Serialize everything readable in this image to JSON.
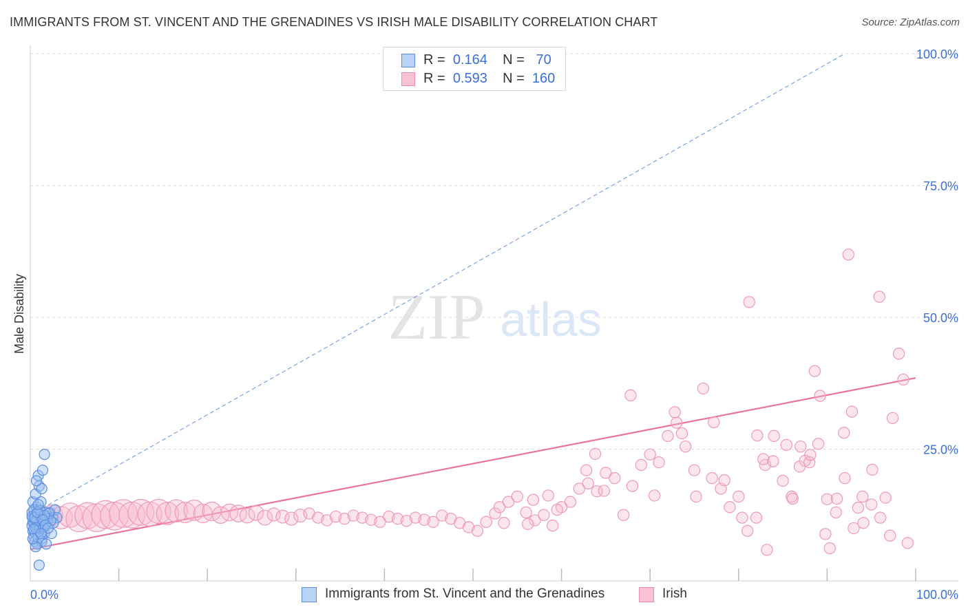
{
  "title": "IMMIGRANTS FROM ST. VINCENT AND THE GRENADINES VS IRISH MALE DISABILITY CORRELATION CHART",
  "source": "Source: ZipAtlas.com",
  "watermark": {
    "zip": "ZIP",
    "atlas": "atlas"
  },
  "colors": {
    "blue": "#4a7fd8",
    "blue_fill": "#aac8f2",
    "pink": "#e8739b",
    "pink_fill": "#f6b8cc",
    "axis_text": "#3a6fd6",
    "grid": "#dddddd"
  },
  "legend": {
    "r_label": "R =",
    "n_label": "N =",
    "rows": [
      {
        "r": "0.164",
        "n": "70"
      },
      {
        "r": "0.593",
        "n": "160"
      }
    ]
  },
  "chart_data": {
    "type": "scatter",
    "title": "IMMIGRANTS FROM ST. VINCENT AND THE GRENADINES VS IRISH MALE DISABILITY CORRELATION CHART",
    "xlabel": "",
    "ylabel": "Male Disability",
    "xlim": [
      0,
      100
    ],
    "ylim": [
      0,
      100
    ],
    "x_tick_labels": [
      "0.0%",
      "100.0%"
    ],
    "y_tick_labels": [
      "25.0%",
      "50.0%",
      "75.0%",
      "100.0%"
    ],
    "y_ticks": [
      25,
      50,
      75,
      100
    ],
    "grid": true,
    "legend_position": "top-center",
    "series": [
      {
        "name": "Immigrants from St. Vincent and the Grenadines",
        "color": "#4a7fd8",
        "r": 0.164,
        "n": 70,
        "trend": {
          "style": "dashed",
          "x": [
            0,
            92
          ],
          "y": [
            12.5,
            100
          ]
        },
        "points": [
          [
            0.2,
            13
          ],
          [
            0.3,
            12
          ],
          [
            0.4,
            11
          ],
          [
            0.2,
            10.5
          ],
          [
            0.5,
            12.5
          ],
          [
            0.6,
            11.5
          ],
          [
            0.3,
            9.5
          ],
          [
            0.8,
            10
          ],
          [
            0.4,
            8.5
          ],
          [
            0.6,
            9
          ],
          [
            1.0,
            12
          ],
          [
            1.2,
            11
          ],
          [
            0.9,
            13
          ],
          [
            1.5,
            12
          ],
          [
            0.7,
            14
          ],
          [
            1.1,
            10
          ],
          [
            0.5,
            7.5
          ],
          [
            1.3,
            8
          ],
          [
            0.8,
            7
          ],
          [
            1.6,
            9
          ],
          [
            2.0,
            12
          ],
          [
            1.8,
            11
          ],
          [
            2.2,
            13
          ],
          [
            1.4,
            10.5
          ],
          [
            2.5,
            12
          ],
          [
            0.3,
            15
          ],
          [
            0.6,
            16.5
          ],
          [
            1.0,
            18
          ],
          [
            1.3,
            17.5
          ],
          [
            0.9,
            20
          ],
          [
            1.4,
            21
          ],
          [
            0.7,
            19
          ],
          [
            1.6,
            24
          ],
          [
            1.2,
            15
          ],
          [
            0.4,
            13.5
          ],
          [
            0.9,
            11.8
          ],
          [
            1.1,
            12.6
          ],
          [
            1.7,
            13
          ],
          [
            2.8,
            13.5
          ],
          [
            3.0,
            12
          ],
          [
            2.4,
            9
          ],
          [
            1.0,
            9.5
          ],
          [
            0.5,
            10.8
          ],
          [
            0.8,
            12.8
          ],
          [
            1.5,
            10.2
          ],
          [
            0.3,
            11.2
          ],
          [
            0.6,
            10
          ],
          [
            1.9,
            11.8
          ],
          [
            2.6,
            11
          ],
          [
            0.2,
            12.2
          ],
          [
            0.7,
            11.4
          ],
          [
            1.2,
            12.2
          ],
          [
            0.4,
            9.8
          ],
          [
            0.9,
            8.2
          ],
          [
            1.3,
            7.5
          ],
          [
            1.8,
            7
          ],
          [
            0.6,
            6.5
          ],
          [
            1.0,
            3
          ],
          [
            2.1,
            12.8
          ],
          [
            2.3,
            11.4
          ],
          [
            0.5,
            12
          ],
          [
            1.1,
            13.4
          ],
          [
            1.6,
            12.4
          ],
          [
            0.8,
            13
          ],
          [
            1.4,
            11.6
          ],
          [
            0.3,
            8
          ],
          [
            1.7,
            10.6
          ],
          [
            2.0,
            10
          ],
          [
            0.9,
            14.5
          ],
          [
            1.2,
            9
          ]
        ]
      },
      {
        "name": "Irish",
        "color": "#e8739b",
        "r": 0.593,
        "n": 160,
        "trend": {
          "style": "solid",
          "x": [
            0,
            100
          ],
          "y": [
            6,
            38.5
          ]
        },
        "points": [
          [
            1.5,
            12,
            10
          ],
          [
            2.5,
            12.5,
            11
          ],
          [
            3.5,
            12,
            12
          ],
          [
            4.5,
            12.5,
            13
          ],
          [
            5.5,
            11.8,
            14
          ],
          [
            6.5,
            12.4,
            14
          ],
          [
            7.5,
            12,
            15
          ],
          [
            8.5,
            12.6,
            15
          ],
          [
            9.5,
            12.3,
            15
          ],
          [
            10.5,
            12.8,
            15
          ],
          [
            11.5,
            12.5,
            14
          ],
          [
            12.5,
            13,
            14
          ],
          [
            13.5,
            12.7,
            13
          ],
          [
            14.5,
            13.2,
            13
          ],
          [
            15.5,
            12.8,
            12
          ],
          [
            16.5,
            13.3,
            12
          ],
          [
            17.5,
            13,
            11
          ],
          [
            18.5,
            13.4,
            11
          ],
          [
            19.5,
            12.8,
            10
          ],
          [
            20.5,
            13.2,
            10
          ],
          [
            21.5,
            12.5,
            9
          ],
          [
            22.5,
            13,
            9
          ],
          [
            23.5,
            12.8,
            9
          ],
          [
            24.5,
            12.4,
            8
          ],
          [
            25.5,
            12.9,
            8
          ],
          [
            26.5,
            12,
            8
          ],
          [
            27.5,
            12.6,
            7
          ],
          [
            28.5,
            12.2,
            7
          ],
          [
            29.5,
            11.8,
            7
          ],
          [
            30.5,
            12.4,
            7
          ],
          [
            31.5,
            12.8,
            6
          ],
          [
            32.5,
            12,
            6
          ],
          [
            33.5,
            11.5,
            6
          ],
          [
            34.5,
            12.2,
            6
          ],
          [
            35.5,
            11.8,
            6
          ],
          [
            36.5,
            12.4,
            6
          ],
          [
            37.5,
            12,
            6
          ],
          [
            38.5,
            11.6,
            6
          ],
          [
            39.5,
            11.2,
            6
          ],
          [
            40.5,
            12.2,
            6
          ],
          [
            41.5,
            11.8,
            6
          ],
          [
            42.5,
            11.4,
            6
          ],
          [
            43.5,
            12,
            6
          ],
          [
            44.5,
            11.6,
            6
          ],
          [
            45.5,
            11.2,
            6
          ],
          [
            46.5,
            12.4,
            6
          ],
          [
            47.5,
            11.8,
            6
          ],
          [
            48.5,
            11,
            6
          ],
          [
            49.5,
            10.2,
            6
          ],
          [
            50.5,
            9.5,
            6
          ],
          [
            51.5,
            11.2,
            6
          ],
          [
            52.5,
            12.8,
            6
          ],
          [
            53,
            14,
            6
          ],
          [
            54,
            15,
            6
          ],
          [
            55,
            16,
            6
          ],
          [
            56,
            13,
            6
          ],
          [
            57,
            11.5,
            6
          ],
          [
            58,
            12.5,
            6
          ],
          [
            59,
            10.5,
            6
          ],
          [
            60,
            14,
            6
          ],
          [
            61,
            15,
            6
          ],
          [
            62,
            17.5,
            6
          ],
          [
            63,
            18.5,
            6
          ],
          [
            64,
            17,
            6
          ],
          [
            65,
            20.5,
            6
          ],
          [
            66,
            19.5,
            6
          ],
          [
            67,
            12.5,
            6
          ],
          [
            68,
            18,
            6
          ],
          [
            69,
            22,
            6
          ],
          [
            70,
            24,
            6
          ],
          [
            71,
            22.5,
            6
          ],
          [
            72,
            27.5,
            6
          ],
          [
            73,
            30,
            6
          ],
          [
            74,
            25.5,
            6
          ],
          [
            75,
            21,
            6
          ],
          [
            76,
            36.5,
            6
          ],
          [
            77,
            19.5,
            6
          ],
          [
            78,
            17.5,
            6
          ],
          [
            79,
            14,
            6
          ],
          [
            80,
            16,
            6
          ],
          [
            81,
            9.5,
            6
          ],
          [
            82,
            12,
            6
          ],
          [
            83,
            22,
            6
          ],
          [
            84,
            27.5,
            6
          ],
          [
            85,
            19,
            6
          ],
          [
            86,
            16,
            6
          ],
          [
            87,
            25.5,
            6
          ],
          [
            88,
            22.5,
            6
          ],
          [
            89,
            26,
            6
          ],
          [
            90,
            15.5,
            6
          ],
          [
            91,
            13,
            6
          ],
          [
            92,
            19.5,
            6
          ],
          [
            93,
            10,
            6
          ],
          [
            94,
            16,
            6
          ],
          [
            95,
            14.5,
            6
          ],
          [
            96,
            12,
            6
          ],
          [
            58.5,
            16.2,
            6
          ],
          [
            59.5,
            13.5,
            6
          ],
          [
            56.8,
            15.4,
            6
          ],
          [
            53.5,
            11,
            6
          ],
          [
            56.2,
            10.8,
            6
          ],
          [
            63.8,
            24.1,
            6
          ],
          [
            62.8,
            21,
            6
          ],
          [
            64.8,
            17.1,
            6
          ],
          [
            67.8,
            35.2,
            6
          ],
          [
            70.5,
            16.2,
            6
          ],
          [
            72.8,
            32,
            6
          ],
          [
            73.6,
            28,
            6
          ],
          [
            75.2,
            16,
            6
          ],
          [
            77.2,
            30.1,
            6
          ],
          [
            78.4,
            19.1,
            6
          ],
          [
            80.4,
            12,
            6
          ],
          [
            81.2,
            52.9,
            6
          ],
          [
            82.1,
            27.6,
            6
          ],
          [
            82.8,
            23.1,
            6
          ],
          [
            83.2,
            5.9,
            6
          ],
          [
            83.9,
            22.7,
            6
          ],
          [
            85.4,
            25.8,
            6
          ],
          [
            86.1,
            15.6,
            6
          ],
          [
            86.9,
            21.7,
            6
          ],
          [
            87.5,
            22.8,
            6
          ],
          [
            88.1,
            23.9,
            6
          ],
          [
            88.6,
            39.8,
            6
          ],
          [
            89.2,
            35.1,
            6
          ],
          [
            89.8,
            8.9,
            6
          ],
          [
            90.3,
            6.2,
            6
          ],
          [
            91.1,
            15.6,
            6
          ],
          [
            91.9,
            28.1,
            6
          ],
          [
            92.4,
            61.9,
            6
          ],
          [
            92.8,
            32.1,
            6
          ],
          [
            93.5,
            13.9,
            6
          ],
          [
            94.1,
            11,
            6
          ],
          [
            95.1,
            21.1,
            6
          ],
          [
            95.9,
            53.9,
            6
          ],
          [
            96.6,
            15.8,
            6
          ],
          [
            97.1,
            8.6,
            6
          ],
          [
            97.4,
            30.9,
            6
          ],
          [
            98.1,
            43.1,
            6
          ],
          [
            98.6,
            38.2,
            6
          ],
          [
            99.1,
            7.2,
            6
          ]
        ]
      }
    ]
  },
  "bottom_legend": [
    {
      "label": "Immigrants from St. Vincent and the Grenadines"
    },
    {
      "label": "Irish"
    }
  ]
}
